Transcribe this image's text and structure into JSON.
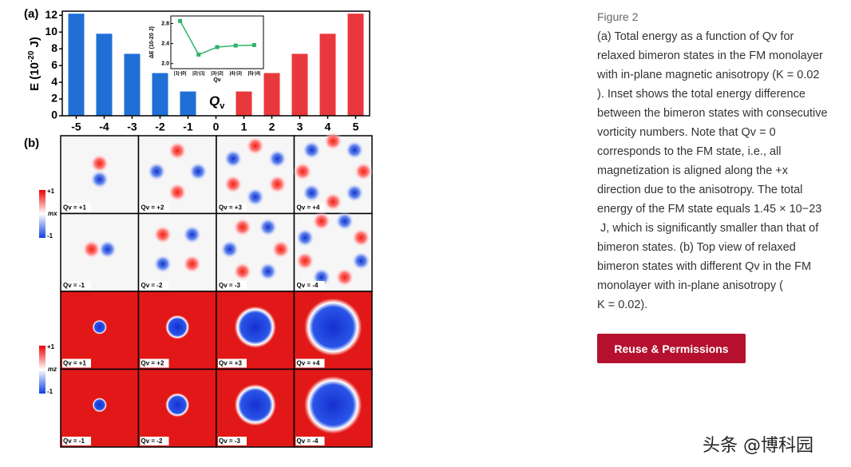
{
  "chart_data": [
    {
      "type": "bar",
      "panel_label": "(a)",
      "y_label": {
        "prefix": "E (10",
        "exponent": "-20",
        "suffix": " J)"
      },
      "x_label": {
        "base": "Q",
        "subscript": "v"
      },
      "categories": [
        "-5",
        "-4",
        "-3",
        "-2",
        "-1",
        "0",
        "1",
        "2",
        "3",
        "4",
        "5"
      ],
      "values": [
        12.2,
        9.8,
        7.4,
        5.1,
        2.9,
        0,
        2.9,
        5.1,
        7.4,
        9.8,
        12.2
      ],
      "colors": [
        "#1f6fd6",
        "#1f6fd6",
        "#1f6fd6",
        "#1f6fd6",
        "#1f6fd6",
        "#1f6fd6",
        "#e8383d",
        "#e8383d",
        "#e8383d",
        "#e8383d",
        "#e8383d"
      ],
      "ylim": [
        0,
        12.5
      ],
      "yticks": [
        0,
        2,
        4,
        6,
        8,
        10,
        12
      ]
    },
    {
      "type": "line",
      "y_label": "ΔE (10-20 J)",
      "x_label": "Qv",
      "categories": [
        "|1|-|0|",
        "|2|-|1|",
        "|3|-|2|",
        "|4|-|3|",
        "|5|-|4|"
      ],
      "values": [
        2.85,
        2.18,
        2.33,
        2.36,
        2.37
      ],
      "color": "#2fb36b",
      "ylim": [
        1.9,
        2.95
      ],
      "yticks": [
        {
          "value": 2.0,
          "label": "2.0"
        },
        {
          "value": 2.4,
          "label": "2.4"
        },
        {
          "value": 2.8,
          "label": "2.8"
        }
      ]
    }
  ],
  "figure": {
    "panel_b_label": "(b)",
    "colorbar_x": {
      "top": "+1",
      "name": "mx",
      "bottom": "-1"
    },
    "colorbar_z": {
      "top": "+1",
      "name": "mz",
      "bottom": "-1"
    },
    "rows": [
      [
        "Qv = +1",
        "Qv = +2",
        "Qv = +3",
        "Qv = +4"
      ],
      [
        "Qv = -1",
        "Qv = -2",
        "Qv = -3",
        "Qv = -4"
      ],
      [
        "Qv = +1",
        "Qv = +2",
        "Qv = +3",
        "Qv = +4"
      ],
      [
        "Qv = -1",
        "Qv = -2",
        "Qv = -3",
        "Qv = -4"
      ]
    ]
  },
  "caption": {
    "heading": "Figure 2",
    "lines": [
      "(a) Total energy as a function of Qv for",
      "relaxed bimeron states in the FM monolayer",
      "with in-plane magnetic anisotropy (K = 0.02",
      "). Inset shows the total energy difference",
      "between the bimeron states with consecutive",
      "vorticity numbers. Note that Qv = 0",
      "corresponds to the FM state, i.e., all",
      "magnetization is aligned along the +x",
      "direction due to the anisotropy. The total",
      "energy of the FM state equals 1.45 × 10−23",
      " J, which is significantly smaller than that of",
      "bimeron states. (b) Top view of relaxed",
      "bimeron states with different Qv in the FM",
      "monolayer with in-plane anisotropy (",
      "K = 0.02)."
    ]
  },
  "button": "Reuse & Permissions",
  "watermark": "头条 @博科园"
}
